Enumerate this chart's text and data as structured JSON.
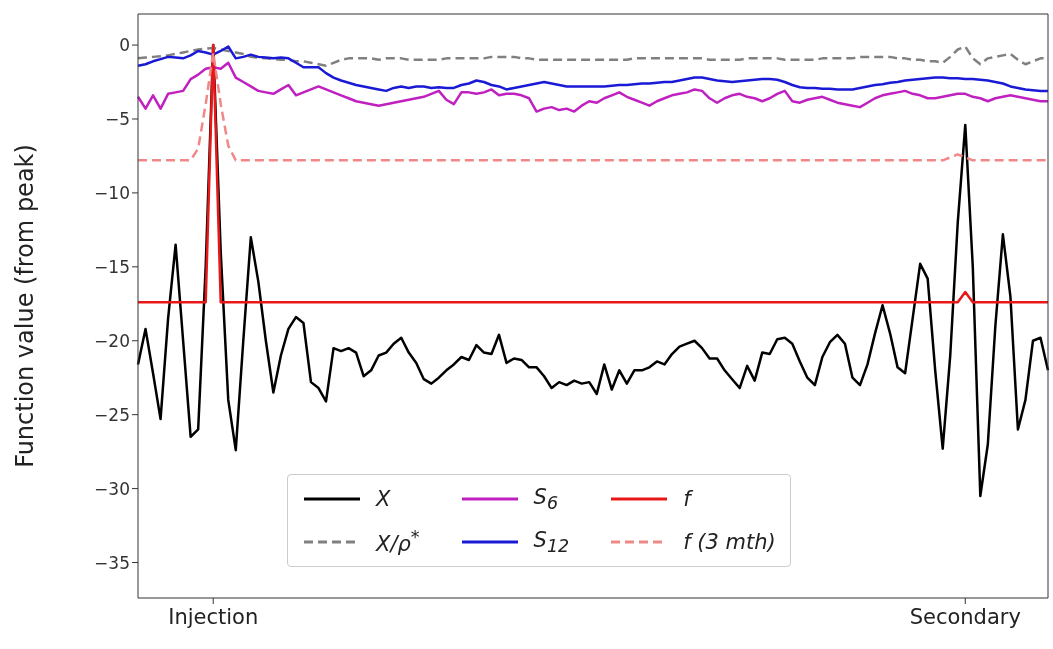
{
  "chart_data": {
    "type": "line",
    "ylabel": "Function value (from peak)",
    "categories": [
      null,
      null,
      null,
      null,
      null,
      null,
      null,
      null,
      null,
      null,
      "Injection",
      null,
      null,
      null,
      null,
      null,
      null,
      null,
      null,
      null,
      null,
      null,
      null,
      null,
      null,
      null,
      null,
      null,
      null,
      null,
      null,
      null,
      null,
      null,
      null,
      null,
      null,
      null,
      null,
      null,
      null,
      null,
      null,
      null,
      null,
      null,
      null,
      null,
      null,
      null,
      null,
      null,
      null,
      null,
      null,
      null,
      null,
      null,
      null,
      null,
      null,
      null,
      null,
      null,
      null,
      null,
      null,
      null,
      null,
      null,
      null,
      null,
      null,
      null,
      null,
      null,
      null,
      null,
      null,
      null,
      null,
      null,
      null,
      null,
      null,
      null,
      null,
      null,
      null,
      null,
      null,
      null,
      null,
      null,
      null,
      null,
      null,
      null,
      null,
      null,
      null,
      null,
      null,
      null,
      null,
      null,
      null,
      null,
      null,
      null,
      "Secondary",
      null,
      null,
      null,
      null,
      null,
      null,
      null,
      null,
      null,
      null,
      null
    ],
    "ylim": [
      -37.4,
      2.1
    ],
    "yticks": [
      0,
      -5,
      -10,
      -15,
      -20,
      -25,
      -30,
      -35
    ],
    "grid": false,
    "legend": "bottom",
    "marker": "none",
    "series": [
      {
        "name": "X",
        "color": "#000000",
        "line_style": "solid",
        "values": [
          -21.6,
          -19.2,
          -22.2,
          -25.3,
          -18.5,
          -13.5,
          -20,
          -26.5,
          -26,
          -15,
          0,
          -14,
          -24,
          -27.4,
          -20,
          -13,
          -16,
          -20,
          -23.5,
          -21,
          -19.2,
          -18.4,
          -18.8,
          -22.8,
          -23.2,
          -24.1,
          -20.5,
          -20.7,
          -20.5,
          -20.8,
          -22.4,
          -22,
          -21,
          -20.8,
          -20.2,
          -19.8,
          -20.8,
          -21.5,
          -22.6,
          -22.9,
          -22.5,
          -22,
          -21.6,
          -21.1,
          -21.3,
          -20.3,
          -20.8,
          -20.9,
          -19.6,
          -21.5,
          -21.2,
          -21.3,
          -21.8,
          -21.8,
          -22.4,
          -23.2,
          -22.8,
          -23,
          -22.7,
          -22.9,
          -22.8,
          -23.6,
          -21.6,
          -23.3,
          -22,
          -22.9,
          -22,
          -22,
          -21.8,
          -21.4,
          -21.6,
          -20.9,
          -20.4,
          -20.2,
          -20,
          -20.5,
          -21.2,
          -21.2,
          -22,
          -22.6,
          -23.2,
          -21.7,
          -22.7,
          -20.8,
          -20.9,
          -19.9,
          -19.8,
          -20.2,
          -21.4,
          -22.5,
          -23,
          -21.1,
          -20.1,
          -19.6,
          -20.2,
          -22.5,
          -23,
          -21.6,
          -19.5,
          -17.6,
          -19.5,
          -21.8,
          -22.2,
          -18.5,
          -14.8,
          -15.8,
          -22,
          -27.3,
          -21,
          -12,
          -5.4,
          -15,
          -30.5,
          -27,
          -19,
          -12.8,
          -17,
          -26,
          -24,
          -20,
          -19.8,
          -22
        ]
      },
      {
        "name": "X/ρ$^{*}$",
        "color": "#808080",
        "line_style": "dashed",
        "values": [
          -0.9,
          -0.85,
          -0.8,
          -0.75,
          -0.7,
          -0.6,
          -0.5,
          -0.4,
          -0.3,
          -0.25,
          -0.2,
          -0.3,
          -0.4,
          -0.5,
          -0.6,
          -0.8,
          -0.85,
          -0.9,
          -0.95,
          -1,
          -1,
          -1.1,
          -1.1,
          -1.2,
          -1.3,
          -1.4,
          -1.2,
          -1,
          -0.9,
          -0.9,
          -0.9,
          -0.9,
          -1,
          -0.9,
          -0.9,
          -0.9,
          -1,
          -1,
          -1,
          -1,
          -1,
          -0.9,
          -0.9,
          -0.9,
          -0.9,
          -0.9,
          -0.9,
          -0.8,
          -0.8,
          -0.8,
          -0.8,
          -0.9,
          -0.9,
          -1,
          -1,
          -1,
          -1,
          -1,
          -1,
          -1,
          -1,
          -1,
          -1,
          -1,
          -1,
          -1,
          -0.9,
          -0.9,
          -0.9,
          -0.9,
          -0.9,
          -0.9,
          -0.9,
          -0.9,
          -0.9,
          -0.9,
          -1,
          -1,
          -1,
          -1,
          -1,
          -0.9,
          -0.9,
          -0.9,
          -0.9,
          -0.9,
          -1,
          -1,
          -1,
          -1,
          -1,
          -0.9,
          -0.9,
          -0.9,
          -0.9,
          -0.9,
          -0.8,
          -0.8,
          -0.8,
          -0.8,
          -0.8,
          -0.9,
          -0.9,
          -1,
          -1,
          -1.1,
          -1.1,
          -1.2,
          -0.8,
          -0.3,
          -0.1,
          -0.9,
          -1.3,
          -0.9,
          -0.8,
          -0.7,
          -0.6,
          -1,
          -1.3,
          -1.1,
          -0.9,
          -0.9
        ]
      },
      {
        "name": "S$_{6}$",
        "color": "#c020c0",
        "line_style": "solid",
        "values": [
          -3.5,
          -4.3,
          -3.4,
          -4.3,
          -3.3,
          -3.2,
          -3.1,
          -2.3,
          -2,
          -1.6,
          -1.5,
          -1.6,
          -1.2,
          -2.2,
          -2.5,
          -2.8,
          -3.1,
          -3.2,
          -3.3,
          -3,
          -2.7,
          -3.4,
          -3.2,
          -3,
          -2.8,
          -3,
          -3.2,
          -3.4,
          -3.6,
          -3.8,
          -3.9,
          -4,
          -4.1,
          -4,
          -3.9,
          -3.8,
          -3.7,
          -3.6,
          -3.5,
          -3.3,
          -3.1,
          -3.7,
          -4,
          -3.2,
          -3.2,
          -3.3,
          -3.2,
          -3,
          -3.4,
          -3.3,
          -3.3,
          -3.4,
          -3.6,
          -4.5,
          -4.3,
          -4.2,
          -4.4,
          -4.3,
          -4.5,
          -4.1,
          -3.8,
          -3.9,
          -3.6,
          -3.4,
          -3.2,
          -3.5,
          -3.7,
          -3.9,
          -4.1,
          -3.8,
          -3.6,
          -3.4,
          -3.3,
          -3.2,
          -3,
          -3.1,
          -3.6,
          -3.9,
          -3.6,
          -3.4,
          -3.3,
          -3.5,
          -3.6,
          -3.8,
          -3.6,
          -3.3,
          -3.1,
          -3.8,
          -3.9,
          -3.7,
          -3.6,
          -3.5,
          -3.7,
          -3.9,
          -4,
          -4.1,
          -4.2,
          -3.9,
          -3.6,
          -3.4,
          -3.3,
          -3.2,
          -3.1,
          -3.3,
          -3.4,
          -3.6,
          -3.6,
          -3.5,
          -3.4,
          -3.3,
          -3.3,
          -3.5,
          -3.6,
          -3.8,
          -3.6,
          -3.5,
          -3.4,
          -3.5,
          -3.6,
          -3.7,
          -3.8,
          -3.8
        ]
      },
      {
        "name": "S$_{12}$",
        "color": "#1a1ad6",
        "line_style": "solid",
        "values": [
          -1.4,
          -1.3,
          -1.1,
          -0.95,
          -0.8,
          -0.85,
          -0.9,
          -0.7,
          -0.4,
          -0.5,
          -0.65,
          -0.4,
          -0.1,
          -0.9,
          -0.8,
          -0.65,
          -0.8,
          -0.85,
          -0.9,
          -0.85,
          -0.9,
          -1.2,
          -1.5,
          -1.5,
          -1.5,
          -1.9,
          -2.2,
          -2.4,
          -2.55,
          -2.7,
          -2.8,
          -2.9,
          -3,
          -3.1,
          -2.9,
          -2.8,
          -2.9,
          -2.8,
          -2.8,
          -2.9,
          -2.85,
          -2.9,
          -2.9,
          -2.7,
          -2.6,
          -2.4,
          -2.5,
          -2.7,
          -2.8,
          -3,
          -2.9,
          -2.8,
          -2.7,
          -2.6,
          -2.5,
          -2.6,
          -2.7,
          -2.8,
          -2.8,
          -2.8,
          -2.8,
          -2.8,
          -2.8,
          -2.75,
          -2.7,
          -2.7,
          -2.65,
          -2.6,
          -2.6,
          -2.55,
          -2.5,
          -2.5,
          -2.4,
          -2.3,
          -2.2,
          -2.2,
          -2.3,
          -2.4,
          -2.45,
          -2.5,
          -2.45,
          -2.4,
          -2.35,
          -2.3,
          -2.3,
          -2.35,
          -2.5,
          -2.7,
          -2.85,
          -2.9,
          -2.9,
          -2.95,
          -2.95,
          -3,
          -3,
          -3,
          -2.9,
          -2.8,
          -2.7,
          -2.65,
          -2.55,
          -2.5,
          -2.4,
          -2.35,
          -2.3,
          -2.25,
          -2.2,
          -2.2,
          -2.25,
          -2.25,
          -2.3,
          -2.3,
          -2.35,
          -2.4,
          -2.5,
          -2.6,
          -2.8,
          -2.9,
          -3,
          -3.05,
          -3.1,
          -3.1
        ]
      },
      {
        "name": "f",
        "color": "#e81818",
        "line_style": "solid",
        "values": [
          -17.4,
          -17.4,
          -17.4,
          -17.4,
          -17.4,
          -17.4,
          -17.4,
          -17.4,
          -17.4,
          -17.4,
          0,
          -17.4,
          -17.4,
          -17.4,
          -17.4,
          -17.4,
          -17.4,
          -17.4,
          -17.4,
          -17.4,
          -17.4,
          -17.4,
          -17.4,
          -17.4,
          -17.4,
          -17.4,
          -17.4,
          -17.4,
          -17.4,
          -17.4,
          -17.4,
          -17.4,
          -17.4,
          -17.4,
          -17.4,
          -17.4,
          -17.4,
          -17.4,
          -17.4,
          -17.4,
          -17.4,
          -17.4,
          -17.4,
          -17.4,
          -17.4,
          -17.4,
          -17.4,
          -17.4,
          -17.4,
          -17.4,
          -17.4,
          -17.4,
          -17.4,
          -17.4,
          -17.4,
          -17.4,
          -17.4,
          -17.4,
          -17.4,
          -17.4,
          -17.4,
          -17.4,
          -17.4,
          -17.4,
          -17.4,
          -17.4,
          -17.4,
          -17.4,
          -17.4,
          -17.4,
          -17.4,
          -17.4,
          -17.4,
          -17.4,
          -17.4,
          -17.4,
          -17.4,
          -17.4,
          -17.4,
          -17.4,
          -17.4,
          -17.4,
          -17.4,
          -17.4,
          -17.4,
          -17.4,
          -17.4,
          -17.4,
          -17.4,
          -17.4,
          -17.4,
          -17.4,
          -17.4,
          -17.4,
          -17.4,
          -17.4,
          -17.4,
          -17.4,
          -17.4,
          -17.4,
          -17.4,
          -17.4,
          -17.4,
          -17.4,
          -17.4,
          -17.4,
          -17.4,
          -17.4,
          -17.4,
          -17.4,
          -16.7,
          -17.4,
          -17.4,
          -17.4,
          -17.4,
          -17.4,
          -17.4,
          -17.4,
          -17.4,
          -17.4,
          -17.4,
          -17.4
        ]
      },
      {
        "name": "f (3 mth)",
        "color": "#f08888",
        "line_style": "dashed",
        "values": [
          -7.8,
          -7.8,
          -7.8,
          -7.8,
          -7.8,
          -7.8,
          -7.8,
          -7.8,
          -7,
          -4,
          -0.5,
          -4,
          -6.8,
          -7.8,
          -7.8,
          -7.8,
          -7.8,
          -7.8,
          -7.8,
          -7.8,
          -7.8,
          -7.8,
          -7.8,
          -7.8,
          -7.8,
          -7.8,
          -7.8,
          -7.8,
          -7.8,
          -7.8,
          -7.8,
          -7.8,
          -7.8,
          -7.8,
          -7.8,
          -7.8,
          -7.8,
          -7.8,
          -7.8,
          -7.8,
          -7.8,
          -7.8,
          -7.8,
          -7.8,
          -7.8,
          -7.8,
          -7.8,
          -7.8,
          -7.8,
          -7.8,
          -7.8,
          -7.8,
          -7.8,
          -7.8,
          -7.8,
          -7.8,
          -7.8,
          -7.8,
          -7.8,
          -7.8,
          -7.8,
          -7.8,
          -7.8,
          -7.8,
          -7.8,
          -7.8,
          -7.8,
          -7.8,
          -7.8,
          -7.8,
          -7.8,
          -7.8,
          -7.8,
          -7.8,
          -7.8,
          -7.8,
          -7.8,
          -7.8,
          -7.8,
          -7.8,
          -7.8,
          -7.8,
          -7.8,
          -7.8,
          -7.8,
          -7.8,
          -7.8,
          -7.8,
          -7.8,
          -7.8,
          -7.8,
          -7.8,
          -7.8,
          -7.8,
          -7.8,
          -7.8,
          -7.8,
          -7.8,
          -7.8,
          -7.8,
          -7.8,
          -7.8,
          -7.8,
          -7.8,
          -7.8,
          -7.8,
          -7.8,
          -7.8,
          -7.6,
          -7.4,
          -7.6,
          -7.8,
          -7.8,
          -7.8,
          -7.8,
          -7.8,
          -7.8,
          -7.8,
          -7.8,
          -7.8,
          -7.8,
          -7.8
        ]
      }
    ]
  }
}
